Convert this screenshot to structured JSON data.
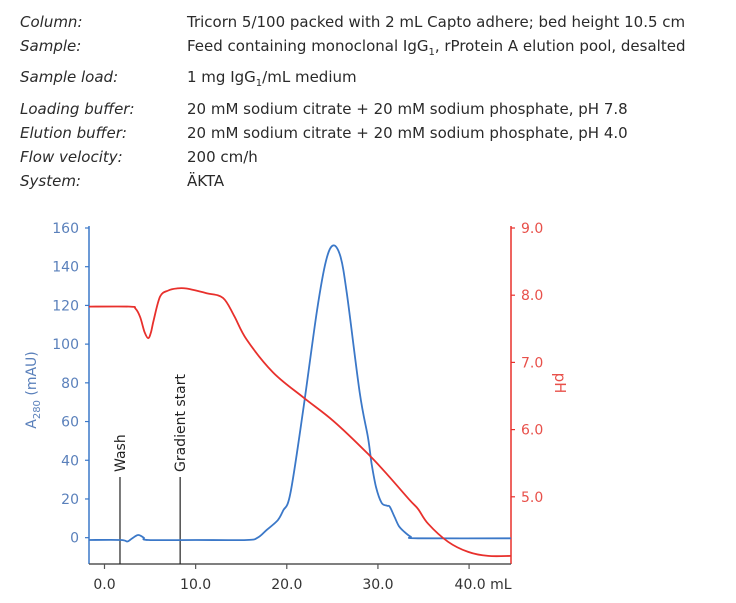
{
  "conditions": [
    {
      "label": "Column:",
      "value": "Tricorn 5/100 packed with 2 mL Capto adhere; bed height 10.5 cm"
    },
    {
      "label": "Sample:",
      "value": "Feed containing monoclonal IgG",
      "sub": "1",
      "value_after": ", rProtein A elution pool, desalted"
    },
    {
      "label": "Sample load:",
      "value": "1 mg IgG",
      "sub": "1",
      "value_after": "/mL medium"
    },
    {
      "label": "Loading buffer:",
      "value": "20 mM sodium citrate + 20 mM sodium phosphate, pH 7.8"
    },
    {
      "label": "Elution buffer:",
      "value": "20 mM sodium citrate + 20 mM sodium phosphate, pH 4.0"
    },
    {
      "label": "Flow velocity:",
      "value": "200 cm/h"
    },
    {
      "label": "System:",
      "value": "ÄKTA"
    }
  ],
  "chart_data": {
    "type": "line",
    "xlabel": "mL",
    "xlim": [
      -1.7,
      44.6
    ],
    "x_ticks": [
      0,
      10,
      20,
      30,
      40
    ],
    "x_tick_labels": [
      "0.0",
      "10.0",
      "20.0",
      "30.0",
      "40.0 mL"
    ],
    "ylabel_left": {
      "main": "A",
      "sub": "280",
      "rest": " (mAU)"
    },
    "ylim_left": [
      -13.6,
      160
    ],
    "y_ticks_left": [
      0,
      20,
      40,
      60,
      80,
      100,
      120,
      140,
      160
    ],
    "ylabel_right": "pH",
    "ylim_right": [
      4.0,
      9.0
    ],
    "y_ticks_right": [
      5.0,
      6.0,
      7.0,
      8.0,
      9.0
    ],
    "y_tick_labels_right": [
      "5.0",
      "6.0",
      "7.0",
      "8.0",
      "9.0"
    ],
    "grid": false,
    "colors": {
      "a280": "#3b78c8",
      "ph": "#e8302c",
      "left_text": "#5a80bb",
      "right_text": "#e8504a",
      "axis": "#555555"
    },
    "series": [
      {
        "axis": "left",
        "color": "#3b78c8",
        "points": [
          [
            -1.7,
            -1.2
          ],
          [
            1.8,
            -1.2
          ],
          [
            2.5,
            -2
          ],
          [
            3.0,
            -0.5
          ],
          [
            3.7,
            1.4
          ],
          [
            4.3,
            0
          ],
          [
            4.8,
            -1.2
          ],
          [
            10,
            -1.2
          ],
          [
            15.6,
            -1.2
          ],
          [
            16.8,
            0
          ],
          [
            17.8,
            4
          ],
          [
            19.0,
            9
          ],
          [
            19.6,
            14
          ],
          [
            20.4,
            23
          ],
          [
            21.8,
            66
          ],
          [
            23.3,
            117
          ],
          [
            24.3,
            143
          ],
          [
            25.1,
            151
          ],
          [
            25.9,
            145
          ],
          [
            26.6,
            126
          ],
          [
            28.0,
            75
          ],
          [
            28.9,
            52
          ],
          [
            29.3,
            38.5
          ],
          [
            29.8,
            26
          ],
          [
            30.4,
            18
          ],
          [
            31.0,
            16.5
          ],
          [
            31.3,
            16
          ],
          [
            31.8,
            11
          ],
          [
            32.3,
            6
          ],
          [
            32.9,
            3
          ],
          [
            33.6,
            0.5
          ],
          [
            34.4,
            -0.3
          ],
          [
            44.6,
            -0.3
          ]
        ]
      },
      {
        "axis": "right",
        "color": "#e8302c",
        "points": [
          [
            -1.7,
            7.83
          ],
          [
            2.8,
            7.83
          ],
          [
            3.4,
            7.8
          ],
          [
            3.9,
            7.68
          ],
          [
            4.4,
            7.45
          ],
          [
            4.8,
            7.36
          ],
          [
            5.1,
            7.45
          ],
          [
            5.4,
            7.63
          ],
          [
            6.1,
            7.98
          ],
          [
            7.0,
            8.07
          ],
          [
            7.9,
            8.1
          ],
          [
            9.0,
            8.1
          ],
          [
            11.2,
            8.03
          ],
          [
            13.0,
            7.96
          ],
          [
            14.2,
            7.7
          ],
          [
            15.6,
            7.34
          ],
          [
            18.5,
            6.85
          ],
          [
            21.8,
            6.48
          ],
          [
            25.1,
            6.13
          ],
          [
            28.9,
            5.64
          ],
          [
            31.1,
            5.32
          ],
          [
            33.5,
            4.95
          ],
          [
            34.4,
            4.82
          ],
          [
            35.5,
            4.6
          ],
          [
            37.7,
            4.33
          ],
          [
            39.9,
            4.18
          ],
          [
            42.1,
            4.12
          ],
          [
            44.6,
            4.12
          ]
        ]
      }
    ],
    "annotations": [
      {
        "label": "Wash",
        "x": 1.7
      },
      {
        "label": "Gradient start",
        "x": 8.3
      }
    ]
  }
}
